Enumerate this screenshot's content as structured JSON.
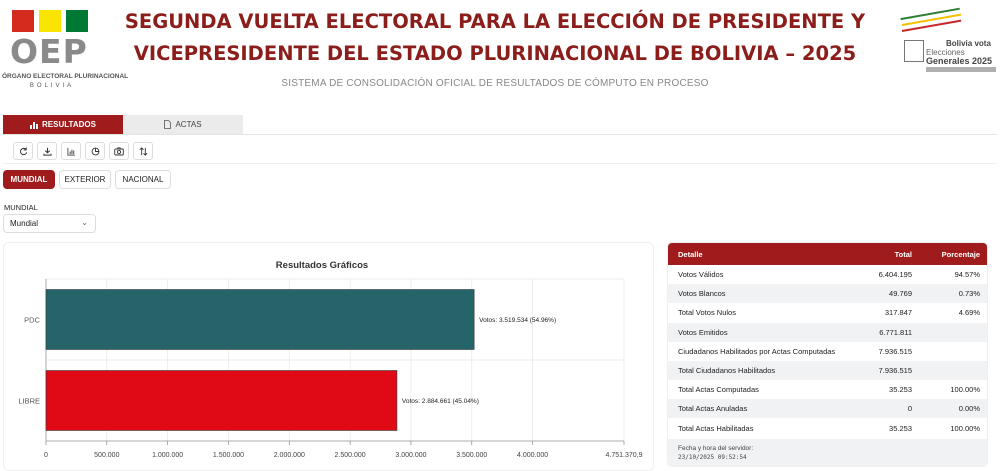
{
  "header": {
    "oep_logo_text": "OEP",
    "oep_subtitle": "ÓRGANO ELECTORAL PLURINACIONAL",
    "oep_country": "BOLIVIA",
    "title_line1": "SEGUNDA VUELTA ELECTORAL PARA LA ELECCIÓN DE PRESIDENTE Y",
    "title_line2": "VICEPRESIDENTE DEL ESTADO PLURINACIONAL DE BOLIVIA – 2025",
    "subtitle": "SISTEMA DE CONSOLIDACIÓN OFICIAL DE RESULTADOS DE CÓMPUTO EN PROCESO",
    "right_logo_line1": "Bolivia vota",
    "right_logo_line2": "Elecciones",
    "right_logo_line3": "Generales 2025",
    "flag_colors": [
      "#d52b1e",
      "#f9e300",
      "#007934"
    ]
  },
  "tabs": [
    {
      "label": "RESULTADOS",
      "icon": "bar-chart-icon",
      "active": true
    },
    {
      "label": "ACTAS",
      "icon": "document-icon",
      "active": false
    }
  ],
  "toolbar": {
    "icons": [
      "refresh-icon",
      "download-icon",
      "bar-chart-icon",
      "pie-chart-icon",
      "camera-icon",
      "sort-icon"
    ]
  },
  "scope": {
    "buttons": [
      "MUNDIAL",
      "EXTERIOR",
      "NACIONAL"
    ],
    "selected": "MUNDIAL",
    "select_label": "MUNDIAL",
    "select_value": "Mundial"
  },
  "chart_data": {
    "type": "bar",
    "orientation": "horizontal",
    "title": "Resultados Gráficos",
    "categories": [
      "PDC",
      "LIBRE"
    ],
    "values": [
      3519534,
      2884661
    ],
    "data_labels": [
      "Votos: 3.519.534 (54.96%)",
      "Votos: 2.884.661 (45.04%)"
    ],
    "colors": [
      "#256569",
      "#e00a16"
    ],
    "xlim": [
      0,
      4751370.9
    ],
    "x_ticks": [
      0,
      500000,
      1000000,
      1500000,
      2000000,
      2500000,
      3000000,
      3500000,
      4000000,
      4751370.9
    ],
    "x_tick_labels": [
      "0",
      "500.000",
      "1.000.000",
      "1.500.000",
      "2.000.000",
      "2.500.000",
      "3.000.000",
      "3.500.000",
      "4.000.000",
      "4.751.370,9"
    ],
    "grid": true
  },
  "table": {
    "headers": {
      "detalle": "Detalle",
      "total": "Total",
      "porcentaje": "Porcentaje"
    },
    "rows": [
      {
        "label": "Votos Válidos",
        "total": "6.404.195",
        "pct": "94.57%"
      },
      {
        "label": "Votos Blancos",
        "total": "49.769",
        "pct": "0.73%"
      },
      {
        "label": "Total Votos Nulos",
        "total": "317.847",
        "pct": "4.69%"
      },
      {
        "label": "Votos Emitidos",
        "total": "6.771.811",
        "pct": ""
      },
      {
        "label": "Ciudadanos Habilitados por Actas Computadas",
        "total": "7.936.515",
        "pct": ""
      },
      {
        "label": "Total Ciudadanos Habilitados",
        "total": "7.936.515",
        "pct": ""
      },
      {
        "label": "Total Actas Computadas",
        "total": "35.253",
        "pct": "100.00%"
      },
      {
        "label": "Total Actas Anuladas",
        "total": "0",
        "pct": "0.00%"
      },
      {
        "label": "Total Actas Habilitadas",
        "total": "35.253",
        "pct": "100.00%"
      }
    ],
    "footer_label": "Fecha y hora del servidor:",
    "footer_timestamp": "23/10/2025 09:52:54"
  }
}
